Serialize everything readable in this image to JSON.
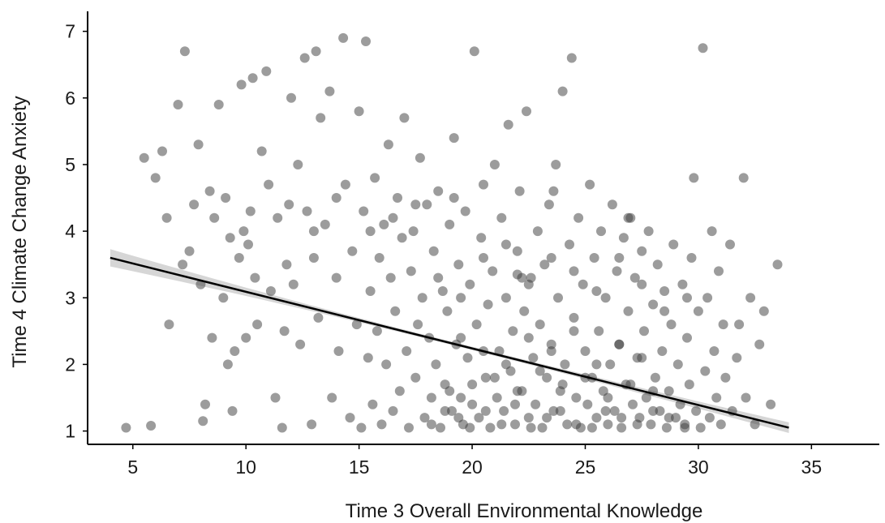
{
  "chart_data": {
    "type": "scatter",
    "title": "",
    "xlabel": "Time 3 Overall Environmental Knowledge",
    "ylabel": "Time 4 Climate Change Anxiety",
    "xlim": [
      3,
      38
    ],
    "ylim": [
      0.8,
      7.3
    ],
    "xticks": [
      5,
      10,
      15,
      20,
      25,
      30,
      35
    ],
    "yticks": [
      1,
      2,
      3,
      4,
      5,
      6,
      7
    ],
    "grid": false,
    "legend": "none",
    "point_color": "#3a3a3a",
    "point_opacity": 0.5,
    "line_color": "#000000",
    "band_color": "#cfcfcf",
    "regression_line": {
      "x": [
        4,
        34
      ],
      "y": [
        3.6,
        1.05
      ],
      "ci_halfwidth_ends": [
        0.13,
        0.08
      ],
      "ci_halfwidth_center": 0.025
    },
    "points": [
      [
        4.7,
        1.05
      ],
      [
        5.8,
        1.08
      ],
      [
        5.5,
        5.1
      ],
      [
        6.0,
        4.8
      ],
      [
        6.3,
        5.2
      ],
      [
        6.5,
        4.2
      ],
      [
        6.6,
        2.6
      ],
      [
        7.0,
        5.9
      ],
      [
        7.2,
        3.5
      ],
      [
        7.3,
        6.7
      ],
      [
        7.5,
        3.7
      ],
      [
        7.7,
        4.4
      ],
      [
        7.9,
        5.3
      ],
      [
        8.0,
        3.2
      ],
      [
        8.1,
        1.15
      ],
      [
        8.2,
        1.4
      ],
      [
        8.4,
        4.6
      ],
      [
        8.5,
        2.4
      ],
      [
        8.6,
        4.2
      ],
      [
        8.8,
        5.9
      ],
      [
        9.0,
        3.0
      ],
      [
        9.1,
        4.5
      ],
      [
        9.2,
        2.0
      ],
      [
        9.3,
        3.9
      ],
      [
        9.4,
        1.3
      ],
      [
        9.5,
        2.2
      ],
      [
        9.7,
        3.6
      ],
      [
        9.8,
        6.2
      ],
      [
        9.9,
        4.0
      ],
      [
        10.0,
        2.4
      ],
      [
        10.1,
        3.8
      ],
      [
        10.2,
        4.3
      ],
      [
        10.3,
        6.3
      ],
      [
        10.4,
        3.3
      ],
      [
        10.5,
        2.6
      ],
      [
        10.7,
        5.2
      ],
      [
        10.9,
        6.4
      ],
      [
        11.0,
        4.7
      ],
      [
        11.1,
        3.1
      ],
      [
        11.3,
        1.5
      ],
      [
        11.4,
        4.2
      ],
      [
        11.6,
        1.05
      ],
      [
        11.7,
        2.5
      ],
      [
        11.8,
        3.5
      ],
      [
        11.9,
        4.4
      ],
      [
        12.0,
        6.0
      ],
      [
        12.1,
        3.2
      ],
      [
        12.3,
        5.0
      ],
      [
        12.4,
        2.3
      ],
      [
        12.6,
        6.6
      ],
      [
        12.7,
        4.3
      ],
      [
        12.9,
        1.1
      ],
      [
        13.0,
        3.6
      ],
      [
        13.1,
        6.7
      ],
      [
        13.2,
        2.7
      ],
      [
        13.3,
        5.7
      ],
      [
        13.5,
        4.1
      ],
      [
        13.7,
        6.1
      ],
      [
        13.8,
        1.5
      ],
      [
        14.0,
        3.3
      ],
      [
        14.1,
        2.2
      ],
      [
        14.3,
        6.9
      ],
      [
        14.4,
        4.7
      ],
      [
        14.6,
        1.2
      ],
      [
        14.7,
        3.7
      ],
      [
        14.9,
        2.6
      ],
      [
        15.0,
        5.8
      ],
      [
        15.1,
        1.05
      ],
      [
        15.2,
        4.3
      ],
      [
        15.3,
        6.85
      ],
      [
        15.4,
        2.1
      ],
      [
        15.5,
        3.1
      ],
      [
        15.6,
        1.4
      ],
      [
        15.7,
        4.8
      ],
      [
        15.8,
        2.5
      ],
      [
        15.9,
        3.6
      ],
      [
        16.0,
        1.1
      ],
      [
        16.1,
        4.1
      ],
      [
        16.2,
        2.0
      ],
      [
        16.3,
        5.3
      ],
      [
        16.4,
        3.3
      ],
      [
        16.5,
        1.3
      ],
      [
        16.6,
        2.8
      ],
      [
        16.7,
        4.5
      ],
      [
        16.8,
        1.6
      ],
      [
        16.9,
        3.9
      ],
      [
        17.0,
        5.7
      ],
      [
        17.1,
        2.2
      ],
      [
        17.2,
        1.05
      ],
      [
        17.3,
        3.4
      ],
      [
        17.4,
        4.0
      ],
      [
        17.5,
        1.8
      ],
      [
        17.6,
        2.6
      ],
      [
        17.7,
        5.1
      ],
      [
        17.8,
        3.0
      ],
      [
        17.9,
        1.2
      ],
      [
        18.0,
        4.4
      ],
      [
        18.1,
        2.4
      ],
      [
        18.2,
        1.5
      ],
      [
        18.3,
        3.7
      ],
      [
        18.4,
        2.0
      ],
      [
        18.5,
        4.6
      ],
      [
        18.6,
        1.05
      ],
      [
        18.7,
        3.1
      ],
      [
        18.8,
        1.7
      ],
      [
        18.9,
        2.8
      ],
      [
        19.0,
        4.1
      ],
      [
        19.1,
        1.3
      ],
      [
        19.2,
        5.4
      ],
      [
        19.3,
        2.3
      ],
      [
        19.4,
        3.5
      ],
      [
        19.5,
        1.5
      ],
      [
        19.6,
        1.1
      ],
      [
        19.7,
        4.3
      ],
      [
        19.8,
        2.1
      ],
      [
        19.9,
        3.2
      ],
      [
        20.0,
        1.4
      ],
      [
        20.1,
        6.7
      ],
      [
        20.2,
        2.6
      ],
      [
        20.3,
        1.2
      ],
      [
        20.4,
        3.9
      ],
      [
        20.5,
        4.7
      ],
      [
        20.6,
        1.8
      ],
      [
        20.7,
        2.9
      ],
      [
        20.8,
        1.05
      ],
      [
        20.9,
        3.4
      ],
      [
        21.0,
        5.0
      ],
      [
        21.1,
        1.5
      ],
      [
        21.2,
        2.2
      ],
      [
        21.3,
        4.2
      ],
      [
        21.4,
        1.3
      ],
      [
        21.5,
        3.0
      ],
      [
        21.6,
        5.6
      ],
      [
        21.7,
        1.9
      ],
      [
        21.8,
        2.5
      ],
      [
        21.9,
        1.1
      ],
      [
        22.0,
        3.7
      ],
      [
        22.1,
        4.6
      ],
      [
        22.2,
        1.6
      ],
      [
        22.3,
        2.8
      ],
      [
        22.4,
        5.8
      ],
      [
        22.5,
        1.2
      ],
      [
        22.6,
        3.3
      ],
      [
        22.7,
        2.1
      ],
      [
        22.8,
        1.4
      ],
      [
        22.9,
        4.0
      ],
      [
        23.0,
        2.6
      ],
      [
        23.1,
        1.05
      ],
      [
        23.2,
        3.5
      ],
      [
        23.3,
        1.8
      ],
      [
        23.4,
        4.4
      ],
      [
        23.5,
        2.3
      ],
      [
        23.6,
        1.3
      ],
      [
        23.7,
        5.0
      ],
      [
        23.8,
        3.0
      ],
      [
        23.9,
        1.6
      ],
      [
        24.0,
        6.1
      ],
      [
        24.1,
        2.0
      ],
      [
        24.2,
        1.1
      ],
      [
        24.3,
        3.8
      ],
      [
        24.4,
        6.6
      ],
      [
        24.5,
        2.7
      ],
      [
        24.6,
        1.5
      ],
      [
        24.7,
        4.2
      ],
      [
        24.8,
        1.05
      ],
      [
        24.9,
        3.2
      ],
      [
        25.0,
        2.2
      ],
      [
        25.1,
        1.4
      ],
      [
        25.2,
        4.7
      ],
      [
        25.3,
        1.8
      ],
      [
        25.4,
        3.6
      ],
      [
        25.5,
        1.2
      ],
      [
        25.6,
        2.5
      ],
      [
        25.7,
        4.0
      ],
      [
        25.8,
        1.6
      ],
      [
        25.9,
        3.0
      ],
      [
        26.0,
        1.1
      ],
      [
        26.1,
        2.0
      ],
      [
        26.2,
        4.4
      ],
      [
        26.3,
        1.3
      ],
      [
        26.4,
        3.4
      ],
      [
        26.5,
        2.3
      ],
      [
        26.6,
        1.05
      ],
      [
        26.7,
        3.9
      ],
      [
        26.8,
        1.7
      ],
      [
        26.9,
        2.8
      ],
      [
        27.0,
        4.2
      ],
      [
        27.1,
        1.4
      ],
      [
        27.2,
        3.3
      ],
      [
        27.3,
        2.1
      ],
      [
        27.4,
        1.2
      ],
      [
        27.5,
        3.7
      ],
      [
        27.6,
        2.5
      ],
      [
        27.7,
        1.5
      ],
      [
        27.8,
        4.0
      ],
      [
        27.9,
        1.1
      ],
      [
        28.0,
        2.9
      ],
      [
        28.1,
        1.8
      ],
      [
        28.2,
        3.5
      ],
      [
        28.3,
        1.3
      ],
      [
        28.4,
        2.2
      ],
      [
        28.5,
        3.1
      ],
      [
        28.6,
        1.05
      ],
      [
        28.7,
        1.6
      ],
      [
        28.8,
        2.6
      ],
      [
        28.9,
        3.8
      ],
      [
        29.0,
        1.2
      ],
      [
        29.1,
        2.0
      ],
      [
        29.2,
        1.4
      ],
      [
        29.3,
        3.2
      ],
      [
        29.4,
        1.1
      ],
      [
        29.5,
        2.4
      ],
      [
        29.6,
        1.7
      ],
      [
        29.7,
        3.6
      ],
      [
        29.8,
        4.8
      ],
      [
        29.9,
        1.3
      ],
      [
        30.0,
        2.8
      ],
      [
        30.1,
        1.05
      ],
      [
        30.2,
        6.75
      ],
      [
        30.3,
        1.9
      ],
      [
        30.4,
        3.0
      ],
      [
        30.5,
        1.2
      ],
      [
        30.6,
        4.0
      ],
      [
        30.7,
        2.2
      ],
      [
        30.8,
        1.5
      ],
      [
        30.9,
        3.4
      ],
      [
        31.0,
        1.1
      ],
      [
        31.1,
        2.6
      ],
      [
        31.2,
        1.8
      ],
      [
        31.4,
        3.8
      ],
      [
        31.5,
        1.3
      ],
      [
        31.7,
        2.1
      ],
      [
        31.8,
        2.6
      ],
      [
        32.0,
        4.8
      ],
      [
        32.1,
        1.5
      ],
      [
        32.3,
        3.0
      ],
      [
        32.5,
        1.1
      ],
      [
        32.7,
        2.3
      ],
      [
        32.9,
        2.8
      ],
      [
        33.2,
        1.4
      ],
      [
        33.5,
        3.5
      ],
      [
        13.0,
        4.0
      ],
      [
        14.0,
        4.5
      ],
      [
        15.5,
        4.0
      ],
      [
        16.5,
        4.2
      ],
      [
        17.5,
        4.4
      ],
      [
        18.5,
        3.3
      ],
      [
        19.5,
        3.0
      ],
      [
        20.5,
        3.6
      ],
      [
        21.5,
        3.8
      ],
      [
        22.5,
        3.2
      ],
      [
        23.5,
        3.6
      ],
      [
        24.5,
        3.4
      ],
      [
        25.5,
        3.1
      ],
      [
        26.5,
        3.6
      ],
      [
        27.5,
        3.2
      ],
      [
        28.5,
        2.8
      ],
      [
        29.5,
        3.0
      ],
      [
        18.2,
        1.1
      ],
      [
        18.8,
        1.3
      ],
      [
        19.4,
        1.2
      ],
      [
        19.9,
        1.05
      ],
      [
        20.6,
        1.3
      ],
      [
        21.3,
        1.1
      ],
      [
        21.9,
        1.4
      ],
      [
        22.6,
        1.05
      ],
      [
        23.3,
        1.2
      ],
      [
        23.9,
        1.3
      ],
      [
        24.6,
        1.1
      ],
      [
        25.3,
        1.05
      ],
      [
        25.9,
        1.3
      ],
      [
        26.6,
        1.2
      ],
      [
        27.3,
        1.1
      ],
      [
        28.0,
        1.3
      ],
      [
        28.7,
        1.2
      ],
      [
        29.4,
        1.05
      ],
      [
        19.0,
        1.6
      ],
      [
        20.0,
        1.7
      ],
      [
        21.0,
        1.8
      ],
      [
        22.0,
        1.6
      ],
      [
        23.0,
        1.9
      ],
      [
        24.0,
        1.7
      ],
      [
        25.0,
        1.8
      ],
      [
        26.0,
        1.5
      ],
      [
        27.0,
        1.7
      ],
      [
        28.0,
        1.6
      ],
      [
        19.5,
        2.4
      ],
      [
        20.5,
        2.2
      ],
      [
        21.5,
        2.0
      ],
      [
        22.5,
        2.4
      ],
      [
        23.5,
        2.2
      ],
      [
        24.5,
        2.5
      ],
      [
        25.5,
        2.0
      ],
      [
        26.5,
        2.3
      ],
      [
        27.5,
        2.1
      ],
      [
        22.2,
        3.3
      ],
      [
        22.0,
        3.35
      ],
      [
        26.9,
        4.2
      ],
      [
        23.6,
        4.6
      ],
      [
        19.2,
        4.5
      ]
    ]
  }
}
